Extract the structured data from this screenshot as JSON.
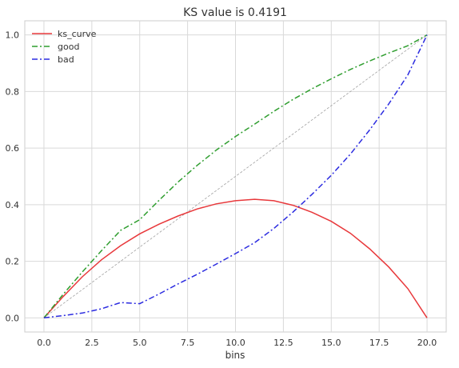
{
  "chart_data": {
    "type": "line",
    "title": "KS value is 0.4191",
    "xlabel": "bins",
    "ylabel": "",
    "xlim": [
      -1,
      21
    ],
    "ylim": [
      -0.05,
      1.05
    ],
    "xticks": [
      0.0,
      2.5,
      5.0,
      7.5,
      10.0,
      12.5,
      15.0,
      17.5,
      20.0
    ],
    "xtick_labels": [
      "0.0",
      "2.5",
      "5.0",
      "7.5",
      "10.0",
      "12.5",
      "15.0",
      "17.5",
      "20.0"
    ],
    "yticks": [
      0.0,
      0.2,
      0.4,
      0.6,
      0.8,
      1.0
    ],
    "ytick_labels": [
      "0.0",
      "0.2",
      "0.4",
      "0.6",
      "0.8",
      "1.0"
    ],
    "grid": true,
    "legend": "top-left",
    "x": [
      0,
      1,
      2,
      3,
      4,
      5,
      6,
      7,
      8,
      9,
      10,
      11,
      12,
      13,
      14,
      15,
      16,
      17,
      18,
      19,
      20
    ],
    "series": [
      {
        "name": "ks_curve",
        "color": "#e8383b",
        "style": "solid",
        "values": [
          0.0,
          0.075,
          0.145,
          0.205,
          0.255,
          0.297,
          0.331,
          0.36,
          0.385,
          0.403,
          0.414,
          0.419,
          0.414,
          0.398,
          0.373,
          0.341,
          0.299,
          0.244,
          0.18,
          0.103,
          0.0
        ]
      },
      {
        "name": "good",
        "color": "#2f9e2f",
        "style": "dashdot",
        "values": [
          0.0,
          0.083,
          0.162,
          0.237,
          0.309,
          0.347,
          0.415,
          0.48,
          0.539,
          0.593,
          0.641,
          0.685,
          0.73,
          0.772,
          0.81,
          0.845,
          0.878,
          0.908,
          0.936,
          0.962,
          1.0
        ]
      },
      {
        "name": "bad",
        "color": "#2b2be0",
        "style": "dashdot",
        "values": [
          0.0,
          0.008,
          0.017,
          0.032,
          0.054,
          0.05,
          0.084,
          0.12,
          0.154,
          0.19,
          0.227,
          0.266,
          0.316,
          0.374,
          0.437,
          0.504,
          0.579,
          0.664,
          0.756,
          0.859,
          1.0
        ]
      },
      {
        "name": "",
        "color": "#a0a0a0",
        "style": "dashed",
        "values": [
          0.0,
          0.05,
          0.1,
          0.15,
          0.2,
          0.25,
          0.3,
          0.35,
          0.4,
          0.45,
          0.5,
          0.55,
          0.6,
          0.65,
          0.7,
          0.75,
          0.8,
          0.85,
          0.9,
          0.95,
          1.0
        ]
      }
    ]
  }
}
